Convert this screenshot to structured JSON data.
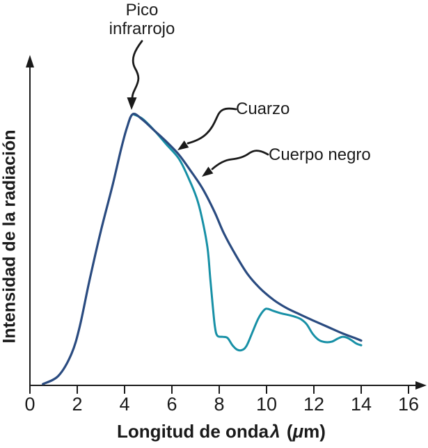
{
  "figure": {
    "background": "#ffffff",
    "annotations": {
      "peak_label_line1": "Pico",
      "peak_label_line2": "infrarrojo",
      "quartz_label": "Cuarzo",
      "blackbody_label": "Cuerpo negro"
    },
    "axes": {
      "x_title_prefix": "Longitud de onda",
      "x_title_symbol": "λ",
      "x_title_unit_open": "(",
      "x_title_mu": "μ",
      "x_title_unit_close": "m)",
      "y_title": "Intensidad de la radiación"
    },
    "colors": {
      "quartz": "#1790a6",
      "blackbody": "#2a4b80",
      "axis": "#1a1a1a",
      "text": "#1a1a1a"
    }
  },
  "chart_data": {
    "type": "line",
    "title": "",
    "xlabel": "Longitud de onda λ (μm)",
    "ylabel": "Intensidad de la radiación",
    "xlim": [
      0,
      16.7
    ],
    "ylim": [
      0,
      115
    ],
    "x_ticks": [
      0,
      2,
      4,
      6,
      8,
      10,
      12,
      14,
      16
    ],
    "y_ticks": [],
    "grid": false,
    "legend_position": "annotated-arrows",
    "annotations": [
      "Pico infrarrojo",
      "Cuarzo",
      "Cuerpo negro"
    ],
    "peak": {
      "x": 4.35,
      "y": 100,
      "label": "Pico infrarrojo"
    },
    "series": [
      {
        "id": "quartz",
        "name": "Cuarzo",
        "color": "#1790a6",
        "width": 3,
        "x": [
          4.35,
          4.75,
          5.2,
          5.75,
          6.3,
          6.75,
          7.05,
          7.25,
          7.5,
          7.62,
          7.73,
          7.82,
          7.92,
          8.15,
          8.35,
          8.56,
          8.75,
          8.95,
          9.15,
          9.4,
          9.65,
          9.9,
          10.05,
          10.3,
          10.6,
          10.9,
          11.2,
          11.45,
          11.7,
          11.95,
          12.2,
          12.45,
          12.75,
          13.0,
          13.2,
          13.4,
          13.6,
          13.8,
          14.0
        ],
        "y": [
          100,
          98.3,
          94.5,
          89,
          83.5,
          75.5,
          69,
          62.5,
          51,
          39.5,
          29,
          21.5,
          18.3,
          17.9,
          17.5,
          14.8,
          13.2,
          13.0,
          14.5,
          19.5,
          24.6,
          27.8,
          28.2,
          27.4,
          26.6,
          26.0,
          25.3,
          24.4,
          22.5,
          19.0,
          16.8,
          16.0,
          16.1,
          17.2,
          17.9,
          17.6,
          16.6,
          15.4,
          14.8
        ]
      },
      {
        "id": "blackbody",
        "name": "Cuerpo negro",
        "color": "#2a4b80",
        "width": 3.2,
        "x": [
          0.55,
          1.2,
          1.75,
          2.1,
          2.5,
          3.0,
          3.5,
          3.85,
          4.1,
          4.35,
          4.75,
          5.25,
          5.75,
          6.3,
          6.8,
          7.3,
          7.8,
          8.2,
          8.7,
          9.2,
          9.7,
          10.3,
          10.85,
          11.4,
          12.0,
          12.6,
          13.2,
          13.75,
          14.0
        ],
        "y": [
          0.5,
          3.5,
          11.5,
          21.5,
          38,
          57,
          74,
          87,
          95,
          100,
          98,
          94,
          90,
          85,
          79,
          72.5,
          64,
          56,
          48,
          41,
          36,
          31.5,
          28.5,
          26.2,
          23.8,
          21.5,
          19.2,
          17.4,
          16.5
        ]
      }
    ]
  }
}
